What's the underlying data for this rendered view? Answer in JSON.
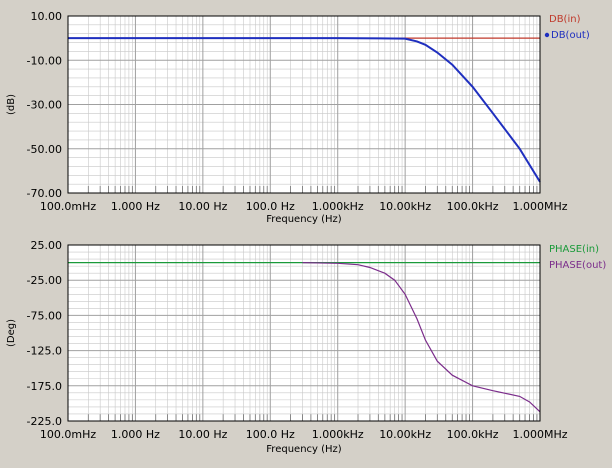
{
  "colors": {
    "window_bg": "#d4d0c8",
    "plot_bg": "#ffffff",
    "grid": "#c8c8c8",
    "major_grid": "#a0a0a0",
    "border": "#000000",
    "db_in": "#c0392b",
    "db_out": "#1f2fbf",
    "phase_in": "#1a9a3a",
    "phase_out": "#7b2d8b"
  },
  "chart_data": [
    {
      "type": "line",
      "title": "",
      "xlabel": "Frequency (Hz)",
      "ylabel": "(dB)",
      "xscale": "log",
      "xlim": [
        0.1,
        1000000
      ],
      "ylim": [
        -70,
        10
      ],
      "grid": true,
      "legend_position": "top-right",
      "x_tick_values": [
        0.1,
        1,
        10,
        100,
        1000,
        10000,
        100000,
        1000000
      ],
      "x_tick_labels": [
        "100.0mHz",
        "1.000 Hz",
        "10.00 Hz",
        "100.0 Hz",
        "1.000kHz",
        "10.00kHz",
        "100.0kHz",
        "1.000MHz"
      ],
      "y_tick_values": [
        10,
        -10,
        -30,
        -50,
        -70
      ],
      "y_tick_labels": [
        "10.00",
        "-10.00",
        "-30.00",
        "-50.00",
        "-70.00"
      ],
      "series": [
        {
          "name": "DB(in)",
          "color": "#c0392b",
          "marker": false,
          "x": [
            0.1,
            1000000
          ],
          "y": [
            0,
            0
          ]
        },
        {
          "name": "DB(out)",
          "color": "#1f2fbf",
          "marker": true,
          "x": [
            0.1,
            1000,
            10000,
            15000,
            20000,
            30000,
            50000,
            100000,
            200000,
            500000,
            1000000
          ],
          "y": [
            0,
            0,
            -0.2,
            -1.5,
            -3,
            -6.5,
            -12,
            -22,
            -34,
            -50,
            -65
          ]
        }
      ]
    },
    {
      "type": "line",
      "title": "",
      "xlabel": "Frequency (Hz)",
      "ylabel": "(Deg)",
      "xscale": "log",
      "xlim": [
        0.1,
        1000000
      ],
      "ylim": [
        -225,
        25
      ],
      "grid": true,
      "legend_position": "top-right",
      "x_tick_values": [
        0.1,
        1,
        10,
        100,
        1000,
        10000,
        100000,
        1000000
      ],
      "x_tick_labels": [
        "100.0mHz",
        "1.000 Hz",
        "10.00 Hz",
        "100.0 Hz",
        "1.000kHz",
        "10.00kHz",
        "100.0kHz",
        "1.000MHz"
      ],
      "y_tick_values": [
        25,
        -25,
        -75,
        -125,
        -175,
        -225
      ],
      "y_tick_labels": [
        "25.00",
        "-25.00",
        "-75.00",
        "-125.0",
        "-175.0",
        "-225.0"
      ],
      "series": [
        {
          "name": "PHASE(in)",
          "color": "#1a9a3a",
          "marker": false,
          "x": [
            0.1,
            1000000
          ],
          "y": [
            0,
            0
          ]
        },
        {
          "name": "PHASE(out)",
          "color": "#7b2d8b",
          "marker": false,
          "x": [
            300,
            1000,
            2000,
            3000,
            5000,
            7000,
            10000,
            15000,
            20000,
            30000,
            50000,
            100000,
            200000,
            500000,
            700000,
            1000000
          ],
          "y": [
            0,
            -1,
            -3,
            -7,
            -15,
            -25,
            -45,
            -80,
            -110,
            -140,
            -160,
            -175,
            -182,
            -190,
            -198,
            -212
          ]
        }
      ]
    }
  ]
}
